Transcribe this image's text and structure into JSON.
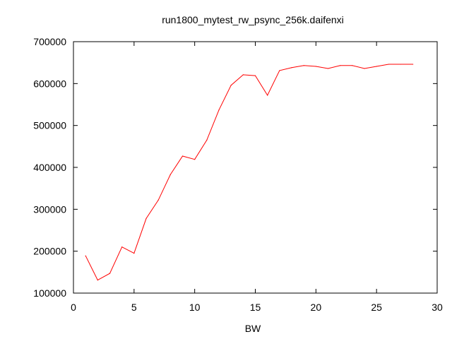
{
  "chart_data": {
    "type": "line",
    "title": "run1800_mytest_rw_psync_256k.daifenxi",
    "xlabel": "BW",
    "ylabel": "",
    "xlim": [
      0,
      30
    ],
    "ylim": [
      100000,
      700000
    ],
    "xticks": [
      0,
      5,
      10,
      15,
      20,
      25,
      30
    ],
    "yticks": [
      100000,
      200000,
      300000,
      400000,
      500000,
      600000,
      700000
    ],
    "grid": false,
    "line_color": "#ff0000",
    "series": [
      {
        "x": [
          1,
          2,
          3,
          4,
          5,
          6,
          7,
          8,
          9,
          10,
          11,
          12,
          13,
          14,
          15,
          16,
          17,
          18,
          19,
          20,
          21,
          22,
          23,
          24,
          25,
          26,
          27,
          28
        ],
        "values": [
          189000,
          131000,
          147000,
          210000,
          195000,
          278000,
          322000,
          383000,
          427000,
          419000,
          465000,
          537000,
          596000,
          621000,
          619000,
          572000,
          631000,
          638000,
          643000,
          641000,
          636000,
          643000,
          643000,
          636000,
          641000,
          646000,
          646000,
          646000
        ]
      }
    ]
  }
}
